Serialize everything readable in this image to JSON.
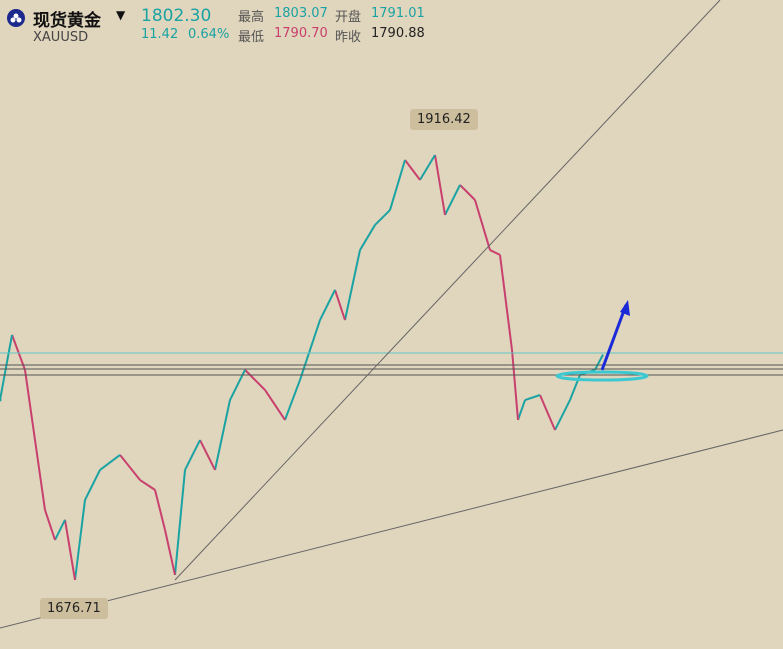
{
  "header": {
    "name": "现货黄金",
    "symbol": "XAUUSD",
    "price": "1802.30",
    "change": "11.42",
    "change_pct": "0.64%",
    "stats": [
      {
        "label": "最高",
        "value": "1803.07",
        "color": "#1aa3a3"
      },
      {
        "label": "开盘",
        "value": "1791.01",
        "color": "#1aa3a3"
      },
      {
        "label": "最低",
        "value": "1790.70",
        "color": "#c8406e"
      },
      {
        "label": "昨收",
        "value": "1790.88",
        "color": "#222222"
      }
    ]
  },
  "chart_data": {
    "type": "line",
    "up_color": "#1aa3a3",
    "down_color": "#c8406e",
    "x": [
      0,
      12,
      25,
      35,
      45,
      55,
      65,
      75,
      85,
      100,
      120,
      140,
      155,
      165,
      175,
      185,
      200,
      215,
      230,
      245,
      265,
      285,
      300,
      320,
      335,
      345,
      360,
      375,
      390,
      405,
      420,
      435,
      445,
      460,
      475,
      490,
      500,
      512,
      518,
      525,
      540,
      555,
      570,
      580,
      595,
      603
    ],
    "values": [
      1777.0,
      1813.3,
      1793.8,
      1754.7,
      1715.7,
      1699.0,
      1710.2,
      1676.7,
      1721.3,
      1738.0,
      1746.4,
      1732.4,
      1726.9,
      1704.6,
      1679.5,
      1738.0,
      1754.7,
      1738.0,
      1777.0,
      1793.8,
      1782.6,
      1765.9,
      1788.2,
      1821.6,
      1838.4,
      1821.6,
      1860.6,
      1874.6,
      1882.9,
      1910.8,
      1899.7,
      1913.6,
      1880.2,
      1896.9,
      1888.5,
      1860.6,
      1857.9,
      1804.9,
      1765.9,
      1777.0,
      1779.8,
      1760.3,
      1777.0,
      1791.0,
      1793.8,
      1802.3
    ],
    "xlim": [
      0,
      783
    ],
    "ylim": [
      1638.2,
      2000
    ],
    "high_label": "1916.42",
    "low_label": "1676.71"
  }
}
